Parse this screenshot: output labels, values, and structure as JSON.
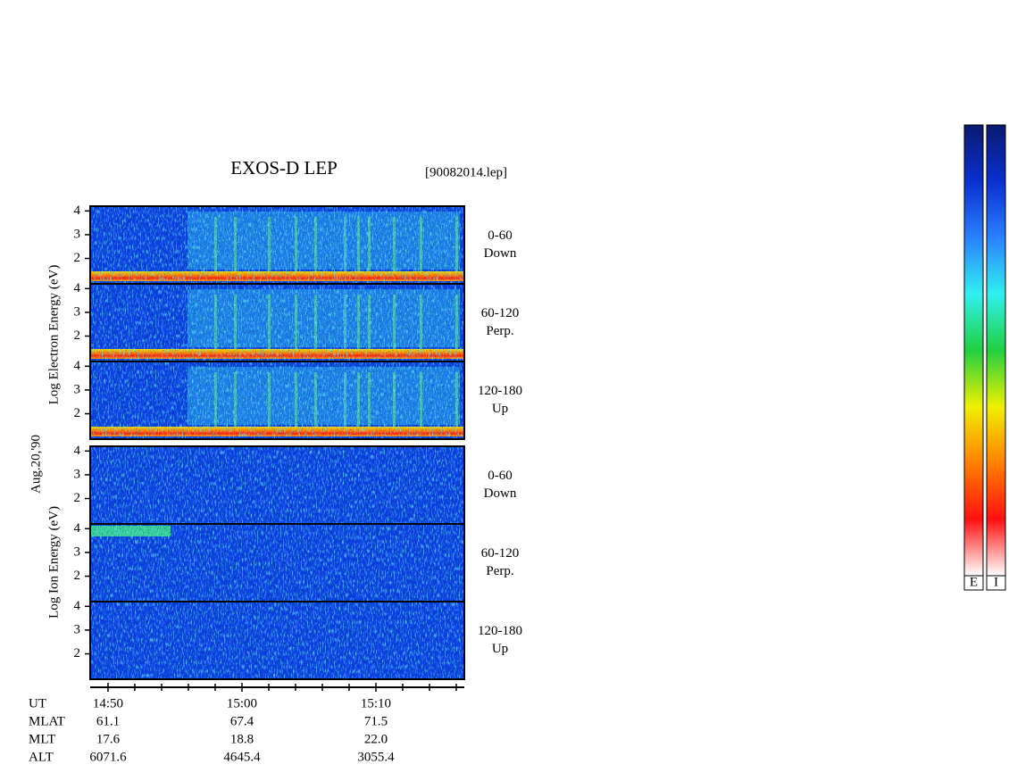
{
  "chart_data": {
    "type": "spectrogram",
    "title": "EXOS-D LEP",
    "file_label": "[90082014.lep]",
    "date_label": "Aug.20,'90",
    "groups": [
      {
        "y_label": "Log  Electron  Energy  (eV)",
        "panels": [
          {
            "range": "0-60",
            "direction": "Down"
          },
          {
            "range": "60-120",
            "direction": "Perp."
          },
          {
            "range": "120-180",
            "direction": "Up"
          }
        ]
      },
      {
        "y_label": "Log  Ion  Energy  (eV)",
        "panels": [
          {
            "range": "0-60",
            "direction": "Down"
          },
          {
            "range": "60-120",
            "direction": "Perp."
          },
          {
            "range": "120-180",
            "direction": "Up"
          }
        ]
      }
    ],
    "ylim": [
      0.93,
      4.2
    ],
    "yticks": [
      2,
      3,
      4
    ],
    "x_label": "UT",
    "xlim": [
      48.67,
      76.6
    ],
    "xticks": [
      {
        "value": 50,
        "label": "14:50"
      },
      {
        "value": 60,
        "label": "15:00"
      },
      {
        "value": 70,
        "label": "15:10"
      }
    ],
    "xminorticks": [
      52,
      54,
      56,
      58,
      62,
      64,
      66,
      68,
      72,
      74,
      76
    ],
    "ephemeris": [
      {
        "name": "MLAT",
        "values": [
          "61.1",
          "67.4",
          "71.5"
        ]
      },
      {
        "name": "MLT",
        "values": [
          "17.6",
          "18.8",
          "22.0"
        ]
      },
      {
        "name": "ALT",
        "values": [
          "6071.6",
          "4645.4",
          "3055.4"
        ]
      }
    ],
    "colorbars": [
      {
        "label": "E"
      },
      {
        "label": "I"
      }
    ],
    "colorscale": [
      "#0a1a70",
      "#0a2fd0",
      "#2a80ff",
      "#30f0f0",
      "#20d040",
      "#f0f000",
      "#ff8000",
      "#ff1010",
      "#ffffff"
    ]
  }
}
